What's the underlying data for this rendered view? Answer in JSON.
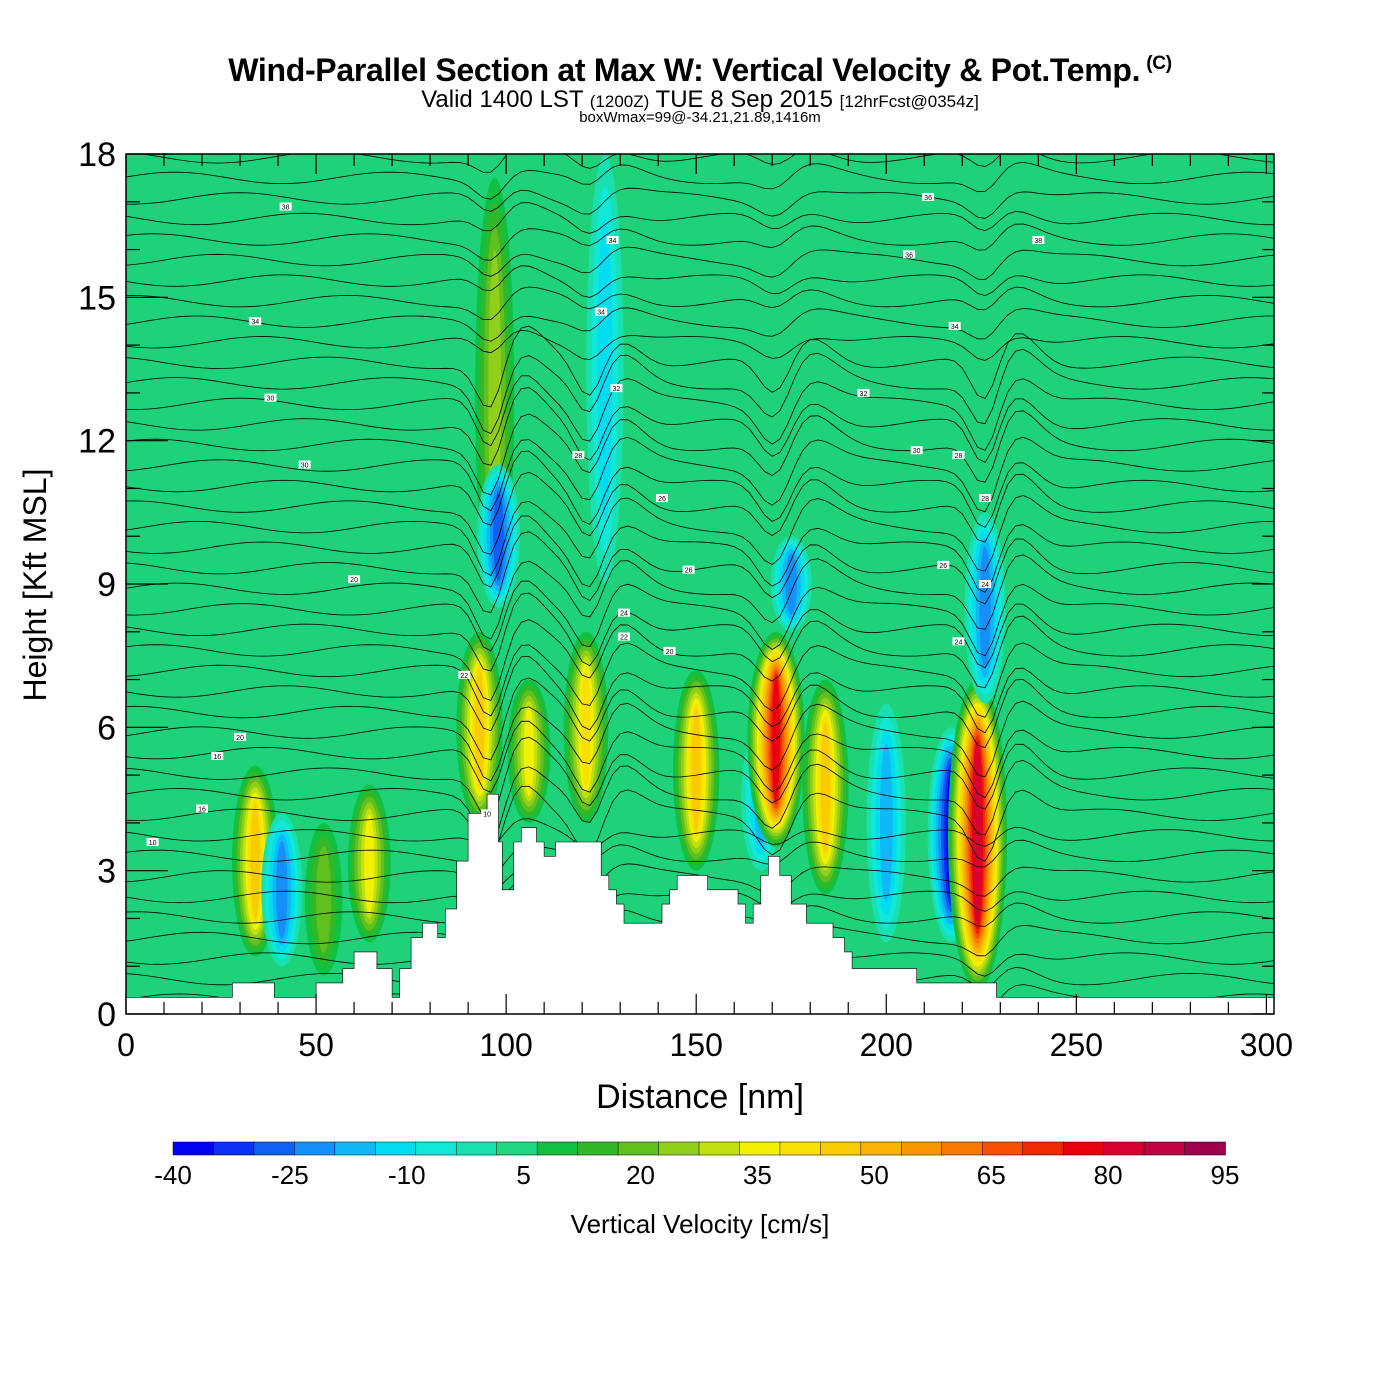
{
  "header": {
    "title": "Wind-Parallel Section at Max W: Vertical Velocity & Pot.Temp.",
    "copyright": "(C)",
    "valid_prefix": "Valid 1400 LST",
    "valid_zulu": "(1200Z)",
    "valid_date": "TUE 8 Sep 2015",
    "forecast": "[12hrFcst@0354z]",
    "box_info": "boxWmax=99@-34.21,21.89,1416m"
  },
  "colors": {
    "background_field": "#1ed27a",
    "terrain": "#ffffff",
    "contour": "#000000"
  },
  "chart_data": {
    "type": "heatmap",
    "xlabel": "Distance [nm]",
    "ylabel": "Height [Kft MSL]",
    "xlim": [
      0,
      302
    ],
    "ylim": [
      0,
      18
    ],
    "x_ticks": [
      0,
      50,
      100,
      150,
      200,
      250,
      300
    ],
    "y_ticks": [
      0,
      3,
      6,
      9,
      12,
      15,
      18
    ],
    "colorbar": {
      "label": "Vertical Velocity [cm/s]",
      "tick_labels": [
        "-40",
        "-25",
        "-10",
        "5",
        "20",
        "35",
        "50",
        "65",
        "80",
        "95"
      ],
      "levels": [
        -40,
        -35,
        -30,
        -25,
        -20,
        -15,
        -10,
        -5,
        0,
        5,
        10,
        15,
        20,
        25,
        30,
        35,
        40,
        45,
        50,
        55,
        60,
        65,
        70,
        75,
        80,
        85,
        90,
        95
      ],
      "colors": [
        "#0000f0",
        "#0a30f5",
        "#1060f8",
        "#1590fa",
        "#10b8f5",
        "#00dcf0",
        "#10e8d8",
        "#18e0b0",
        "#20d880",
        "#10c040",
        "#30b828",
        "#60c020",
        "#90d018",
        "#c0e010",
        "#f0f000",
        "#f8e000",
        "#f8cc00",
        "#f8b400",
        "#f89800",
        "#f87800",
        "#f85000",
        "#f02800",
        "#e80010",
        "#d80030",
        "#c00040",
        "#a00050"
      ]
    },
    "w_features": [
      {
        "x": 34,
        "z_low": 1.2,
        "z_high": 5.2,
        "w": 40
      },
      {
        "x": 41,
        "z_low": 1.0,
        "z_high": 4.2,
        "w": -25
      },
      {
        "x": 52,
        "z_low": 0.8,
        "z_high": 4.0,
        "w": 15
      },
      {
        "x": 64,
        "z_low": 1.5,
        "z_high": 4.8,
        "w": 30
      },
      {
        "x": 93,
        "z_low": 4.0,
        "z_high": 8.0,
        "w": 40
      },
      {
        "x": 97,
        "z_low": 8.5,
        "z_high": 17.5,
        "w": 20
      },
      {
        "x": 98,
        "z_low": 8.5,
        "z_high": 11.5,
        "w": -30
      },
      {
        "x": 106,
        "z_low": 4.0,
        "z_high": 7.0,
        "w": 30
      },
      {
        "x": 121,
        "z_low": 4.0,
        "z_high": 8.0,
        "w": 35
      },
      {
        "x": 126,
        "z_low": 9.0,
        "z_high": 18.0,
        "w": -15
      },
      {
        "x": 150,
        "z_low": 3.0,
        "z_high": 7.2,
        "w": 40
      },
      {
        "x": 167,
        "z_low": 3.0,
        "z_high": 6.0,
        "w": -20
      },
      {
        "x": 171,
        "z_low": 3.5,
        "z_high": 8.0,
        "w": 70
      },
      {
        "x": 175,
        "z_low": 8.0,
        "z_high": 10.0,
        "w": -25
      },
      {
        "x": 184,
        "z_low": 2.5,
        "z_high": 7.0,
        "w": 40
      },
      {
        "x": 200,
        "z_low": 1.5,
        "z_high": 6.5,
        "w": -20
      },
      {
        "x": 217,
        "z_low": 1.5,
        "z_high": 6.0,
        "w": -40
      },
      {
        "x": 224,
        "z_low": 0.5,
        "z_high": 7.0,
        "w": 75
      },
      {
        "x": 226,
        "z_low": 6.5,
        "z_high": 10.5,
        "w": -25
      }
    ],
    "terrain_profile": [
      [
        0,
        0.35
      ],
      [
        28,
        0.35
      ],
      [
        28,
        0.65
      ],
      [
        39,
        0.65
      ],
      [
        39,
        0.35
      ],
      [
        50,
        0.35
      ],
      [
        50,
        0.65
      ],
      [
        57,
        0.65
      ],
      [
        57,
        0.95
      ],
      [
        60,
        0.95
      ],
      [
        60,
        1.3
      ],
      [
        66,
        1.3
      ],
      [
        66,
        0.95
      ],
      [
        70,
        0.95
      ],
      [
        70,
        0.35
      ],
      [
        72,
        0.35
      ],
      [
        72,
        0.95
      ],
      [
        75,
        0.95
      ],
      [
        75,
        1.6
      ],
      [
        78,
        1.6
      ],
      [
        78,
        1.9
      ],
      [
        82,
        1.9
      ],
      [
        82,
        1.6
      ],
      [
        84,
        1.6
      ],
      [
        84,
        2.2
      ],
      [
        87,
        2.2
      ],
      [
        87,
        3.2
      ],
      [
        90,
        3.2
      ],
      [
        90,
        4.2
      ],
      [
        95,
        4.2
      ],
      [
        95,
        4.6
      ],
      [
        98,
        4.6
      ],
      [
        98,
        3.6
      ],
      [
        99,
        3.6
      ],
      [
        99,
        2.6
      ],
      [
        102,
        2.6
      ],
      [
        102,
        3.6
      ],
      [
        104,
        3.6
      ],
      [
        104,
        3.9
      ],
      [
        108,
        3.9
      ],
      [
        108,
        3.6
      ],
      [
        110,
        3.6
      ],
      [
        110,
        3.3
      ],
      [
        113,
        3.3
      ],
      [
        113,
        3.6
      ],
      [
        125,
        3.6
      ],
      [
        125,
        2.9
      ],
      [
        127,
        2.9
      ],
      [
        127,
        2.6
      ],
      [
        129,
        2.6
      ],
      [
        129,
        2.3
      ],
      [
        131,
        2.3
      ],
      [
        131,
        1.9
      ],
      [
        141,
        1.9
      ],
      [
        141,
        2.3
      ],
      [
        143,
        2.3
      ],
      [
        143,
        2.6
      ],
      [
        145,
        2.6
      ],
      [
        145,
        2.9
      ],
      [
        153,
        2.9
      ],
      [
        153,
        2.6
      ],
      [
        161,
        2.6
      ],
      [
        161,
        2.3
      ],
      [
        163,
        2.3
      ],
      [
        163,
        1.9
      ],
      [
        165,
        1.9
      ],
      [
        165,
        2.3
      ],
      [
        167,
        2.3
      ],
      [
        167,
        2.9
      ],
      [
        169,
        2.9
      ],
      [
        169,
        3.3
      ],
      [
        172,
        3.3
      ],
      [
        172,
        2.9
      ],
      [
        175,
        2.9
      ],
      [
        175,
        2.3
      ],
      [
        179,
        2.3
      ],
      [
        179,
        1.9
      ],
      [
        186,
        1.9
      ],
      [
        186,
        1.6
      ],
      [
        189,
        1.6
      ],
      [
        189,
        1.3
      ],
      [
        191,
        1.3
      ],
      [
        191,
        0.95
      ],
      [
        208,
        0.95
      ],
      [
        208,
        0.65
      ],
      [
        229,
        0.65
      ],
      [
        229,
        0.35
      ],
      [
        302,
        0.35
      ]
    ],
    "contour_label_values": [
      "10",
      "16",
      "16",
      "20",
      "20",
      "20",
      "22",
      "22",
      "24",
      "24",
      "24",
      "26",
      "26",
      "26",
      "28",
      "28",
      "28",
      "30",
      "30",
      "30",
      "32",
      "32",
      "34",
      "34",
      "34",
      "34",
      "36",
      "36",
      "38",
      "38",
      "10"
    ]
  }
}
